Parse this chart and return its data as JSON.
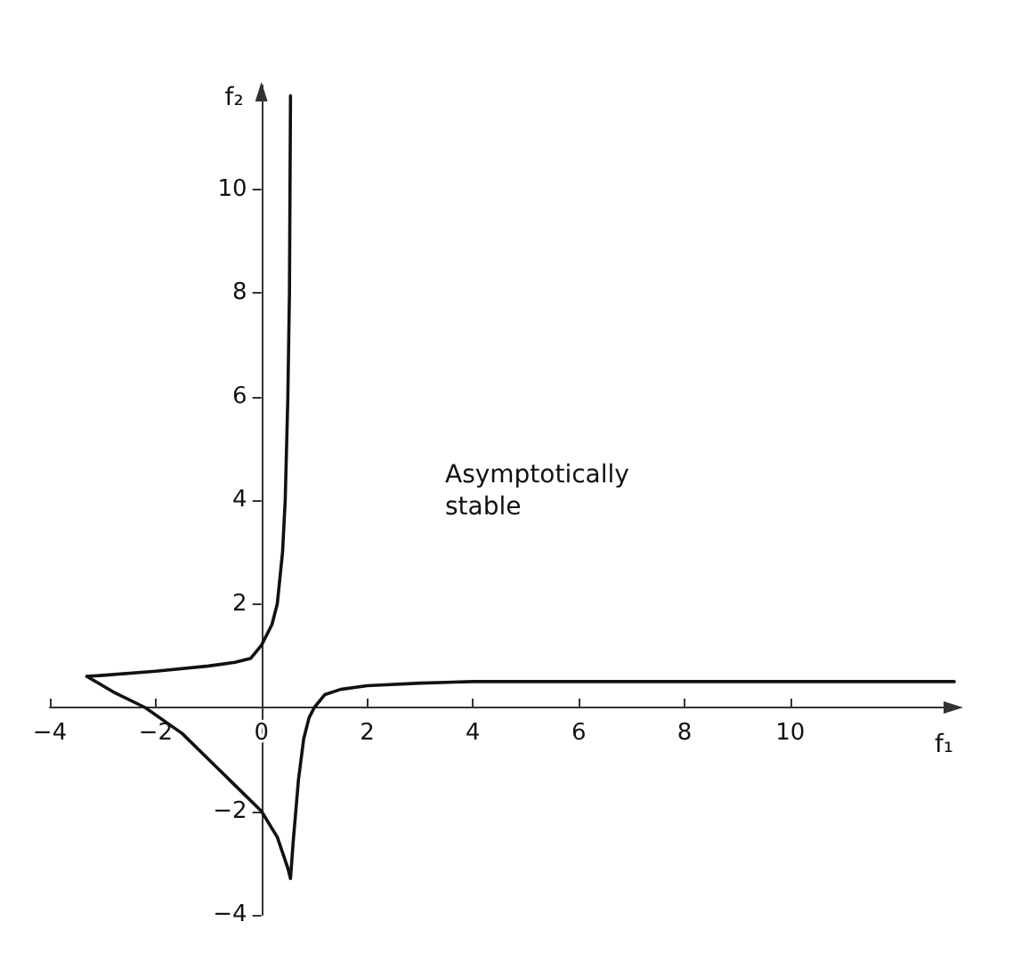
{
  "chart_data": {
    "type": "line",
    "xlabel": "f₁",
    "ylabel": "f₂",
    "annotations": [
      "Asymptotically\nstable"
    ],
    "xlim": [
      -4,
      13.2
    ],
    "ylim": [
      -4,
      12
    ],
    "xticks": [
      -4,
      -2,
      0,
      2,
      4,
      6,
      8,
      10
    ],
    "yticks": [
      -4,
      -2,
      2,
      4,
      6,
      8,
      10
    ],
    "grid": false,
    "marker": "none",
    "line_style": "solid",
    "series": [
      {
        "color": "#111111",
        "x": [
          -3.3,
          -3,
          -2,
          -1,
          -0.5,
          -0.2,
          0,
          0.2,
          0.3,
          0.4,
          0.45,
          0.5,
          0.53,
          0.55
        ],
        "values": [
          0.6,
          0.62,
          0.7,
          0.8,
          0.87,
          0.95,
          1.2,
          1.6,
          2,
          3,
          4,
          6,
          8,
          11.8
        ]
      },
      {
        "color": "#111111",
        "x": [
          -3.3,
          -2.8,
          -2.2,
          -1.5,
          -1,
          -0.5,
          0,
          0.3,
          0.5,
          0.55,
          0.6,
          0.7,
          0.8,
          0.9,
          1,
          1.2,
          1.5,
          2,
          3,
          4,
          6,
          13.1
        ],
        "values": [
          0.6,
          0.3,
          0,
          -0.5,
          -1,
          -1.5,
          -2,
          -2.5,
          -3.1,
          -3.3,
          -2.6,
          -1.4,
          -0.6,
          -0.2,
          0,
          0.25,
          0.35,
          0.42,
          0.47,
          0.5,
          0.5,
          0.5
        ]
      }
    ]
  }
}
